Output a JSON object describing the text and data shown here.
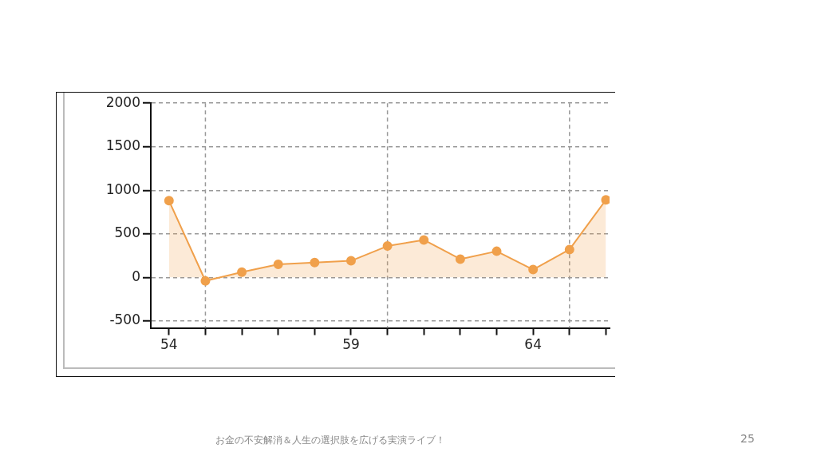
{
  "chart_data": {
    "type": "area",
    "x": [
      54,
      55,
      56,
      57,
      58,
      59,
      60,
      61,
      62,
      63,
      64,
      65,
      66
    ],
    "series": [
      {
        "color": "#f0a04b",
        "values": [
          880,
          -40,
          60,
          150,
          170,
          190,
          360,
          430,
          210,
          300,
          90,
          320,
          890
        ]
      }
    ],
    "xlim": [
      53.5,
      66.1
    ],
    "ylim": [
      -580,
      2000
    ],
    "xticks": [
      54,
      {
        "value": 55,
        "label": null
      },
      {
        "value": 56,
        "label": null
      },
      {
        "value": 57,
        "label": null
      },
      {
        "value": 58,
        "label": null
      },
      59,
      {
        "value": 60,
        "label": null
      },
      {
        "value": 61,
        "label": null
      },
      {
        "value": 62,
        "label": null
      },
      {
        "value": 63,
        "label": null
      },
      64,
      {
        "value": 65,
        "label": null
      },
      {
        "value": 66,
        "label": null
      }
    ],
    "yticks": [
      -500,
      0,
      500,
      1000,
      1500,
      2000
    ],
    "grid": "y",
    "marker": "circle",
    "legend": false,
    "ref_lines": [
      {
        "axis": "x",
        "value": 55,
        "color": "#999999",
        "line_style": "dashed"
      },
      {
        "axis": "x",
        "value": 60,
        "color": "#999999",
        "line_style": "dashed"
      },
      {
        "axis": "x",
        "value": 65,
        "color": "#999999",
        "line_style": "dashed"
      }
    ],
    "annotations": [
      "お金の不安解消＆人生の選択肢を広げる実演ライブ！",
      "25"
    ]
  }
}
